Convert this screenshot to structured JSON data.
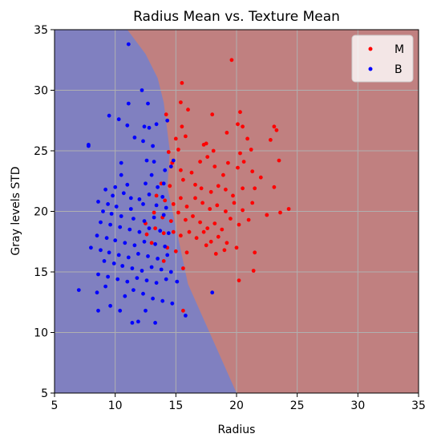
{
  "chart_data": {
    "type": "scatter",
    "title": "Radius Mean vs. Texture Mean",
    "xlabel": "Radius",
    "ylabel": "Gray levels STD",
    "xlim": [
      5,
      35
    ],
    "ylim": [
      5,
      35
    ],
    "xticks": [
      5,
      10,
      15,
      20,
      25,
      30,
      35
    ],
    "yticks": [
      5,
      10,
      15,
      20,
      25,
      30,
      35
    ],
    "grid": true,
    "legend_position": "top-right",
    "decision_regions": [
      {
        "name": "B",
        "color": "#8080c0",
        "boundary": [
          [
            11.0,
            35
          ],
          [
            12.5,
            33
          ],
          [
            13.5,
            31
          ],
          [
            14.0,
            29
          ],
          [
            14.5,
            25
          ],
          [
            14.3,
            22
          ],
          [
            16.0,
            14
          ],
          [
            18.0,
            9.5
          ],
          [
            20.0,
            5
          ]
        ]
      },
      {
        "name": "M",
        "color": "#c08080"
      }
    ],
    "series": [
      {
        "name": "M",
        "color": "#ff0000",
        "points": [
          [
            19.6,
            32.5
          ],
          [
            20.3,
            28.2
          ],
          [
            20.1,
            27.2
          ],
          [
            20.5,
            27.0
          ],
          [
            19.2,
            26.5
          ],
          [
            20.9,
            26.0
          ],
          [
            23.1,
            27.0
          ],
          [
            23.3,
            26.7
          ],
          [
            18.0,
            28.0
          ],
          [
            15.4,
            29.0
          ],
          [
            15.5,
            30.6
          ],
          [
            16.0,
            28.4
          ],
          [
            14.2,
            28.0
          ],
          [
            15.5,
            27.0
          ],
          [
            15.8,
            26.2
          ],
          [
            17.5,
            25.6
          ],
          [
            17.3,
            25.5
          ],
          [
            18.1,
            25.0
          ],
          [
            19.3,
            24.0
          ],
          [
            20.3,
            24.8
          ],
          [
            20.6,
            24.1
          ],
          [
            21.2,
            25.1
          ],
          [
            22.8,
            25.9
          ],
          [
            23.5,
            24.2
          ],
          [
            15.0,
            26.0
          ],
          [
            15.2,
            25.1
          ],
          [
            14.4,
            24.9
          ],
          [
            14.7,
            24.0
          ],
          [
            15.4,
            23.4
          ],
          [
            16.3,
            23.2
          ],
          [
            17.0,
            24.1
          ],
          [
            17.6,
            24.5
          ],
          [
            18.2,
            23.7
          ],
          [
            18.9,
            23.0
          ],
          [
            20.1,
            23.6
          ],
          [
            21.3,
            23.3
          ],
          [
            22.0,
            22.8
          ],
          [
            13.8,
            22.3
          ],
          [
            14.5,
            22.1
          ],
          [
            15.6,
            22.6
          ],
          [
            16.6,
            22.2
          ],
          [
            17.1,
            21.9
          ],
          [
            17.9,
            21.6
          ],
          [
            18.5,
            22.1
          ],
          [
            19.1,
            21.8
          ],
          [
            19.7,
            21.3
          ],
          [
            20.5,
            21.9
          ],
          [
            21.5,
            21.9
          ],
          [
            23.1,
            22.0
          ],
          [
            13.4,
            21.3
          ],
          [
            14.1,
            20.9
          ],
          [
            14.8,
            20.6
          ],
          [
            15.4,
            21.1
          ],
          [
            15.9,
            20.4
          ],
          [
            16.6,
            21.1
          ],
          [
            17.2,
            20.7
          ],
          [
            17.8,
            20.2
          ],
          [
            18.4,
            20.5
          ],
          [
            19.1,
            20.0
          ],
          [
            19.8,
            20.7
          ],
          [
            20.5,
            20.1
          ],
          [
            21.3,
            20.7
          ],
          [
            22.5,
            19.7
          ],
          [
            24.3,
            20.2
          ],
          [
            23.6,
            19.9
          ],
          [
            13.2,
            19.9
          ],
          [
            13.9,
            19.5
          ],
          [
            14.6,
            19.2
          ],
          [
            15.2,
            19.9
          ],
          [
            15.8,
            19.3
          ],
          [
            16.4,
            19.6
          ],
          [
            17.0,
            19.1
          ],
          [
            17.6,
            18.6
          ],
          [
            18.2,
            19.0
          ],
          [
            18.8,
            18.5
          ],
          [
            19.5,
            19.4
          ],
          [
            20.2,
            18.9
          ],
          [
            21.0,
            19.3
          ],
          [
            12.5,
            19.0
          ],
          [
            13.3,
            18.6
          ],
          [
            14.0,
            18.2
          ],
          [
            14.8,
            18.3
          ],
          [
            15.4,
            18.0
          ],
          [
            16.1,
            18.3
          ],
          [
            16.7,
            17.8
          ],
          [
            17.3,
            18.3
          ],
          [
            17.9,
            17.5
          ],
          [
            18.5,
            17.9
          ],
          [
            19.2,
            17.4
          ],
          [
            20.0,
            17.0
          ],
          [
            12.6,
            18.1
          ],
          [
            13.0,
            17.4
          ],
          [
            14.3,
            17.0
          ],
          [
            15.0,
            16.7
          ],
          [
            15.9,
            16.6
          ],
          [
            17.5,
            17.2
          ],
          [
            18.3,
            16.5
          ],
          [
            19.0,
            16.8
          ],
          [
            21.5,
            16.6
          ],
          [
            14.0,
            15.9
          ],
          [
            15.6,
            15.3
          ],
          [
            20.2,
            14.3
          ],
          [
            21.4,
            15.1
          ],
          [
            15.6,
            11.8
          ]
        ]
      },
      {
        "name": "B",
        "color": "#0000ff",
        "points": [
          [
            11.1,
            33.8
          ],
          [
            12.2,
            30.0
          ],
          [
            11.1,
            28.9
          ],
          [
            12.7,
            28.9
          ],
          [
            9.5,
            27.9
          ],
          [
            10.3,
            27.6
          ],
          [
            11.0,
            27.1
          ],
          [
            12.4,
            27.0
          ],
          [
            12.8,
            26.9
          ],
          [
            13.4,
            27.2
          ],
          [
            14.3,
            27.5
          ],
          [
            11.6,
            26.1
          ],
          [
            12.3,
            25.8
          ],
          [
            13.1,
            25.4
          ],
          [
            7.8,
            25.5
          ],
          [
            7.8,
            25.4
          ],
          [
            13.2,
            24.1
          ],
          [
            14.8,
            24.2
          ],
          [
            10.5,
            24.0
          ],
          [
            12.6,
            24.2
          ],
          [
            14.1,
            23.4
          ],
          [
            14.6,
            23.7
          ],
          [
            10.5,
            23.0
          ],
          [
            13.0,
            23.0
          ],
          [
            14.0,
            22.3
          ],
          [
            10.0,
            22.0
          ],
          [
            11.0,
            22.2
          ],
          [
            12.5,
            22.3
          ],
          [
            13.5,
            22.0
          ],
          [
            9.2,
            21.8
          ],
          [
            9.8,
            21.3
          ],
          [
            10.7,
            21.5
          ],
          [
            11.3,
            21.1
          ],
          [
            12.0,
            21.0
          ],
          [
            12.8,
            21.4
          ],
          [
            13.9,
            21.2
          ],
          [
            8.6,
            20.8
          ],
          [
            9.4,
            20.6
          ],
          [
            10.1,
            20.4
          ],
          [
            11.3,
            20.2
          ],
          [
            12.3,
            20.6
          ],
          [
            13.4,
            20.5
          ],
          [
            14.2,
            20.3
          ],
          [
            9.0,
            20.0
          ],
          [
            9.7,
            19.8
          ],
          [
            10.5,
            19.6
          ],
          [
            11.5,
            19.4
          ],
          [
            12.4,
            19.2
          ],
          [
            13.2,
            19.5
          ],
          [
            14.0,
            19.7
          ],
          [
            8.8,
            19.1
          ],
          [
            9.6,
            18.9
          ],
          [
            10.4,
            18.7
          ],
          [
            11.2,
            18.5
          ],
          [
            12.0,
            18.3
          ],
          [
            12.8,
            18.6
          ],
          [
            13.7,
            18.4
          ],
          [
            14.4,
            18.2
          ],
          [
            8.5,
            18.0
          ],
          [
            9.3,
            17.8
          ],
          [
            10.0,
            17.6
          ],
          [
            10.8,
            17.4
          ],
          [
            11.6,
            17.2
          ],
          [
            12.4,
            17.5
          ],
          [
            13.3,
            17.3
          ],
          [
            14.1,
            17.1
          ],
          [
            8.0,
            17.0
          ],
          [
            8.8,
            16.8
          ],
          [
            9.5,
            16.6
          ],
          [
            10.3,
            16.4
          ],
          [
            11.1,
            16.2
          ],
          [
            11.9,
            16.5
          ],
          [
            12.7,
            16.3
          ],
          [
            13.5,
            16.1
          ],
          [
            14.3,
            16.4
          ],
          [
            9.1,
            15.9
          ],
          [
            9.9,
            15.7
          ],
          [
            10.6,
            15.5
          ],
          [
            11.4,
            15.3
          ],
          [
            12.2,
            15.1
          ],
          [
            13.0,
            15.4
          ],
          [
            13.8,
            15.2
          ],
          [
            14.6,
            15.0
          ],
          [
            8.6,
            14.8
          ],
          [
            9.4,
            14.6
          ],
          [
            10.2,
            14.4
          ],
          [
            11.0,
            14.2
          ],
          [
            11.8,
            14.5
          ],
          [
            12.6,
            14.3
          ],
          [
            13.4,
            14.1
          ],
          [
            14.2,
            14.4
          ],
          [
            15.1,
            14.2
          ],
          [
            7.0,
            13.5
          ],
          [
            8.5,
            13.3
          ],
          [
            9.2,
            13.8
          ],
          [
            10.8,
            13.0
          ],
          [
            11.5,
            13.5
          ],
          [
            12.3,
            13.2
          ],
          [
            13.1,
            12.8
          ],
          [
            13.9,
            12.6
          ],
          [
            14.7,
            12.4
          ],
          [
            8.6,
            11.8
          ],
          [
            9.6,
            12.2
          ],
          [
            10.4,
            11.8
          ],
          [
            12.5,
            11.8
          ],
          [
            15.8,
            11.4
          ],
          [
            11.4,
            10.8
          ],
          [
            11.9,
            10.9
          ],
          [
            13.3,
            10.8
          ],
          [
            18.0,
            13.3
          ]
        ]
      }
    ]
  }
}
